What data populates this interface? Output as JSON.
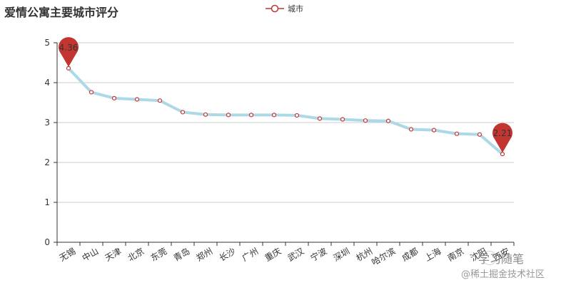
{
  "chart_data": {
    "type": "line",
    "title": "爱情公寓主要城市评分",
    "xlabel": "",
    "ylabel": "",
    "categories": [
      "无锡",
      "中山",
      "天津",
      "北京",
      "东莞",
      "青岛",
      "郑州",
      "长沙",
      "广州",
      "重庆",
      "武汉",
      "宁波",
      "深圳",
      "杭州",
      "哈尔滨",
      "成都",
      "上海",
      "南京",
      "沈阳",
      "西安"
    ],
    "series": [
      {
        "name": "城市",
        "values": [
          4.36,
          3.76,
          3.61,
          3.58,
          3.55,
          3.26,
          3.2,
          3.19,
          3.19,
          3.19,
          3.18,
          3.1,
          3.08,
          3.05,
          3.04,
          2.83,
          2.81,
          2.72,
          2.7,
          2.21
        ],
        "line_color": "#add8e6",
        "marker_color": "#c23531"
      }
    ],
    "ylim": [
      0,
      5
    ],
    "yticks": [
      0,
      1,
      2,
      3,
      4,
      5
    ],
    "grid": true,
    "legend_position": "top-center",
    "annotations": [
      {
        "type": "max-pin",
        "category": "无锡",
        "label": "4.36"
      },
      {
        "type": "min-pin",
        "category": "西安",
        "label": "2.21"
      }
    ]
  },
  "watermark": {
    "line1": "学习随笔",
    "line2": "@稀土掘金技术社区"
  }
}
